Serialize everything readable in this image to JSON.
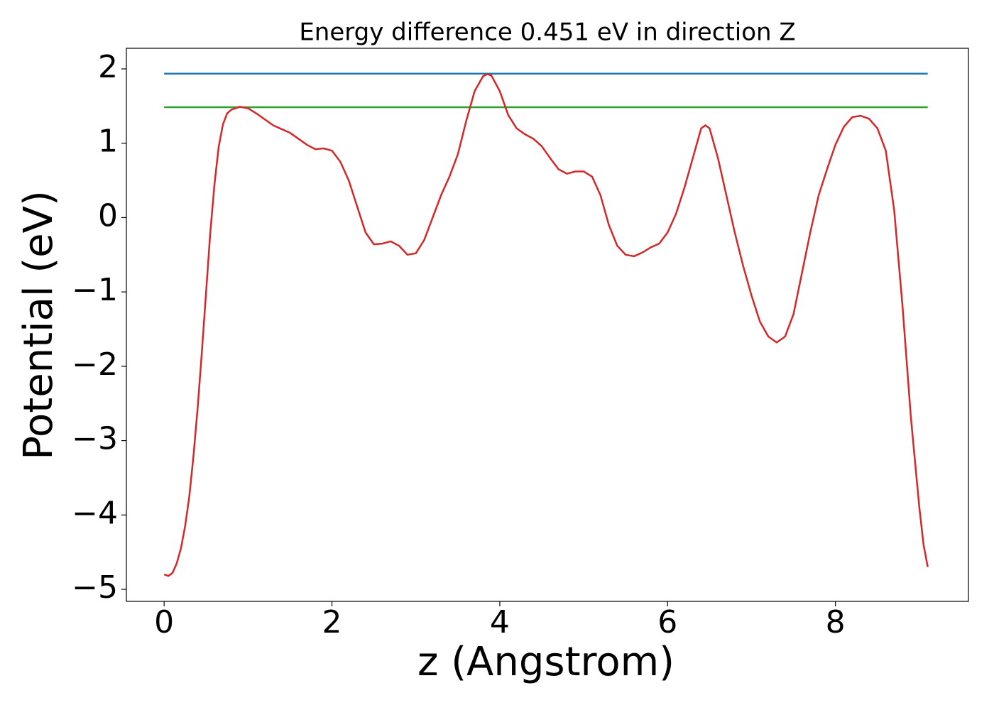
{
  "chart_data": {
    "type": "line",
    "title": "Energy difference 0.451 eV in direction Z",
    "x_label": "z (Angstrom)",
    "y_label": "Potential (eV)",
    "xlim": [
      -0.45,
      9.585
    ],
    "ylim": [
      -5.162,
      2.277
    ],
    "xticks": [
      0,
      2,
      4,
      6,
      8
    ],
    "yticks": [
      {
        "value": -5,
        "label": "−5"
      },
      {
        "value": -4,
        "label": "−4"
      },
      {
        "value": -3,
        "label": "−3"
      },
      {
        "value": -2,
        "label": "−2"
      },
      {
        "value": -1,
        "label": "−1"
      },
      0,
      1,
      2
    ],
    "grid": false,
    "series": [
      {
        "color": "#1f77b4",
        "x": [
          0,
          9.1
        ],
        "values": [
          1.935,
          1.935
        ]
      },
      {
        "color": "#2ca02c",
        "x": [
          0,
          9.1
        ],
        "values": [
          1.484,
          1.484
        ]
      },
      {
        "color": "#d62728",
        "x": [
          0,
          0.05,
          0.1,
          0.15,
          0.2,
          0.25,
          0.3,
          0.35,
          0.4,
          0.45,
          0.5,
          0.55,
          0.6,
          0.65,
          0.7,
          0.75,
          0.8,
          0.9,
          1.0,
          1.1,
          1.2,
          1.3,
          1.4,
          1.5,
          1.6,
          1.7,
          1.8,
          1.9,
          2.0,
          2.1,
          2.2,
          2.3,
          2.4,
          2.5,
          2.6,
          2.7,
          2.8,
          2.9,
          3.0,
          3.1,
          3.2,
          3.3,
          3.4,
          3.5,
          3.6,
          3.7,
          3.8,
          3.85,
          3.9,
          4.0,
          4.1,
          4.2,
          4.3,
          4.4,
          4.5,
          4.6,
          4.7,
          4.8,
          4.9,
          5.0,
          5.1,
          5.2,
          5.3,
          5.4,
          5.5,
          5.6,
          5.7,
          5.8,
          5.9,
          6.0,
          6.1,
          6.2,
          6.3,
          6.4,
          6.45,
          6.5,
          6.6,
          6.7,
          6.8,
          6.9,
          7.0,
          7.1,
          7.2,
          7.3,
          7.4,
          7.5,
          7.6,
          7.7,
          7.8,
          7.9,
          8.0,
          8.1,
          8.2,
          8.3,
          8.4,
          8.5,
          8.6,
          8.7,
          8.8,
          8.9,
          9.0,
          9.05,
          9.1
        ],
        "values": [
          -4.8,
          -4.82,
          -4.78,
          -4.65,
          -4.45,
          -4.15,
          -3.75,
          -3.2,
          -2.55,
          -1.8,
          -1.0,
          -0.2,
          0.45,
          0.95,
          1.25,
          1.4,
          1.45,
          1.49,
          1.47,
          1.4,
          1.32,
          1.24,
          1.19,
          1.14,
          1.06,
          0.98,
          0.92,
          0.93,
          0.9,
          0.75,
          0.5,
          0.15,
          -0.2,
          -0.36,
          -0.35,
          -0.32,
          -0.38,
          -0.5,
          -0.48,
          -0.3,
          0.0,
          0.3,
          0.55,
          0.85,
          1.3,
          1.7,
          1.9,
          1.93,
          1.91,
          1.7,
          1.38,
          1.2,
          1.12,
          1.06,
          0.96,
          0.8,
          0.65,
          0.59,
          0.62,
          0.62,
          0.55,
          0.3,
          -0.1,
          -0.38,
          -0.5,
          -0.52,
          -0.47,
          -0.4,
          -0.35,
          -0.2,
          0.05,
          0.4,
          0.8,
          1.2,
          1.24,
          1.2,
          0.8,
          0.3,
          -0.2,
          -0.65,
          -1.05,
          -1.4,
          -1.6,
          -1.68,
          -1.6,
          -1.3,
          -0.75,
          -0.2,
          0.3,
          0.65,
          0.98,
          1.22,
          1.35,
          1.37,
          1.33,
          1.2,
          0.9,
          0.1,
          -1.2,
          -2.7,
          -3.9,
          -4.4,
          -4.7
        ]
      }
    ]
  }
}
